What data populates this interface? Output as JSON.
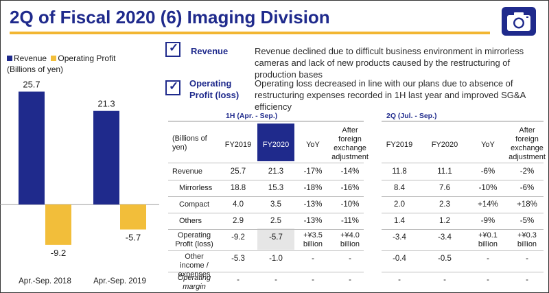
{
  "title": "2Q of Fiscal 2020 (6) Imaging Division",
  "legend": {
    "revenue": "Revenue",
    "operating_profit": "Operating Profit",
    "unit": "(Billions of yen)"
  },
  "colors": {
    "revenue": "#1f2a8c",
    "operating_profit": "#f2be3a",
    "accent": "#f2b632"
  },
  "chart_data": {
    "type": "bar",
    "categories": [
      "Apr.-Sep. 2018",
      "Apr.-Sep. 2019"
    ],
    "series": [
      {
        "name": "Revenue",
        "values": [
          25.7,
          21.3
        ]
      },
      {
        "name": "Operating Profit",
        "values": [
          -9.2,
          -5.7
        ]
      }
    ],
    "ylabel": "(Billions of yen)",
    "ylim": [
      -10,
      27
    ],
    "grid": false,
    "legend_position": "top-left"
  },
  "commentary": [
    {
      "label": "Revenue",
      "text": "Revenue declined due to difficult business environment in mirrorless cameras and lack of new products caused by the restructuring of production bases"
    },
    {
      "label": "Operating Profit (loss)",
      "text": "Operating loss decreased in line with our plans due to absence of restructuring expenses recorded in 1H last year and improved SG&A efficiency"
    }
  ],
  "table": {
    "section_1h": "1H (Apr. - Sep.)",
    "section_2q": "2Q (Jul. - Sep.)",
    "unit_label": "(Billions of yen)",
    "headers_1h": [
      "FY2019",
      "FY2020",
      "YoY",
      "After foreign exchange adjustment"
    ],
    "headers_2q": [
      "FY2019",
      "FY2020",
      "YoY",
      "After foreign exchange adjustment"
    ],
    "rows": [
      {
        "label": "Revenue",
        "h1": [
          "25.7",
          "21.3",
          "-17%",
          "-14%"
        ],
        "q2": [
          "11.8",
          "11.1",
          "-6%",
          "-2%"
        ]
      },
      {
        "label": "Mirrorless",
        "h1": [
          "18.8",
          "15.3",
          "-18%",
          "-16%"
        ],
        "q2": [
          "8.4",
          "7.6",
          "-10%",
          "-6%"
        ]
      },
      {
        "label": "Compact",
        "h1": [
          "4.0",
          "3.5",
          "-13%",
          "-10%"
        ],
        "q2": [
          "2.0",
          "2.3",
          "+14%",
          "+18%"
        ]
      },
      {
        "label": "Others",
        "h1": [
          "2.9",
          "2.5",
          "-13%",
          "-11%"
        ],
        "q2": [
          "1.4",
          "1.2",
          "-9%",
          "-5%"
        ]
      },
      {
        "label": "Operating Profit (loss)",
        "h1": [
          "-9.2",
          "-5.7",
          "+¥3.5 billion",
          "+¥4.0 billion"
        ],
        "q2": [
          "-3.4",
          "-3.4",
          "+¥0.1 billion",
          "+¥0.3 billion"
        ]
      },
      {
        "label": "Other income / expenses",
        "h1": [
          "-5.3",
          "-1.0",
          "-",
          "-"
        ],
        "q2": [
          "-0.4",
          "-0.5",
          "-",
          "-"
        ]
      },
      {
        "label": "Operating margin",
        "h1": [
          "-",
          "-",
          "-",
          "-"
        ],
        "q2": [
          "-",
          "-",
          "-",
          "-"
        ]
      }
    ]
  }
}
